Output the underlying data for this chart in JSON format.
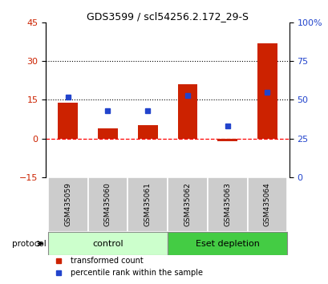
{
  "title": "GDS3599 / scl54256.2.172_29-S",
  "categories": [
    "GSM435059",
    "GSM435060",
    "GSM435061",
    "GSM435062",
    "GSM435063",
    "GSM435064"
  ],
  "red_values": [
    14,
    4,
    5,
    21,
    -1,
    37
  ],
  "blue_values": [
    52,
    43,
    43,
    53,
    33,
    55
  ],
  "ylim_left": [
    -15,
    45
  ],
  "ylim_right": [
    0,
    100
  ],
  "yticks_left": [
    -15,
    0,
    15,
    30,
    45
  ],
  "yticks_right": [
    0,
    25,
    50,
    75,
    100
  ],
  "yticklabels_right": [
    "0",
    "25",
    "50",
    "75",
    "100%"
  ],
  "control_label": "control",
  "eset_label": "Eset depletion",
  "protocol_label": "protocol",
  "legend_red": "transformed count",
  "legend_blue": "percentile rank within the sample",
  "bar_color": "#cc2200",
  "dot_color": "#2244cc",
  "control_color": "#ccffcc",
  "eset_color": "#44cc44",
  "group_label_bg": "#cccccc",
  "bar_width": 0.5
}
